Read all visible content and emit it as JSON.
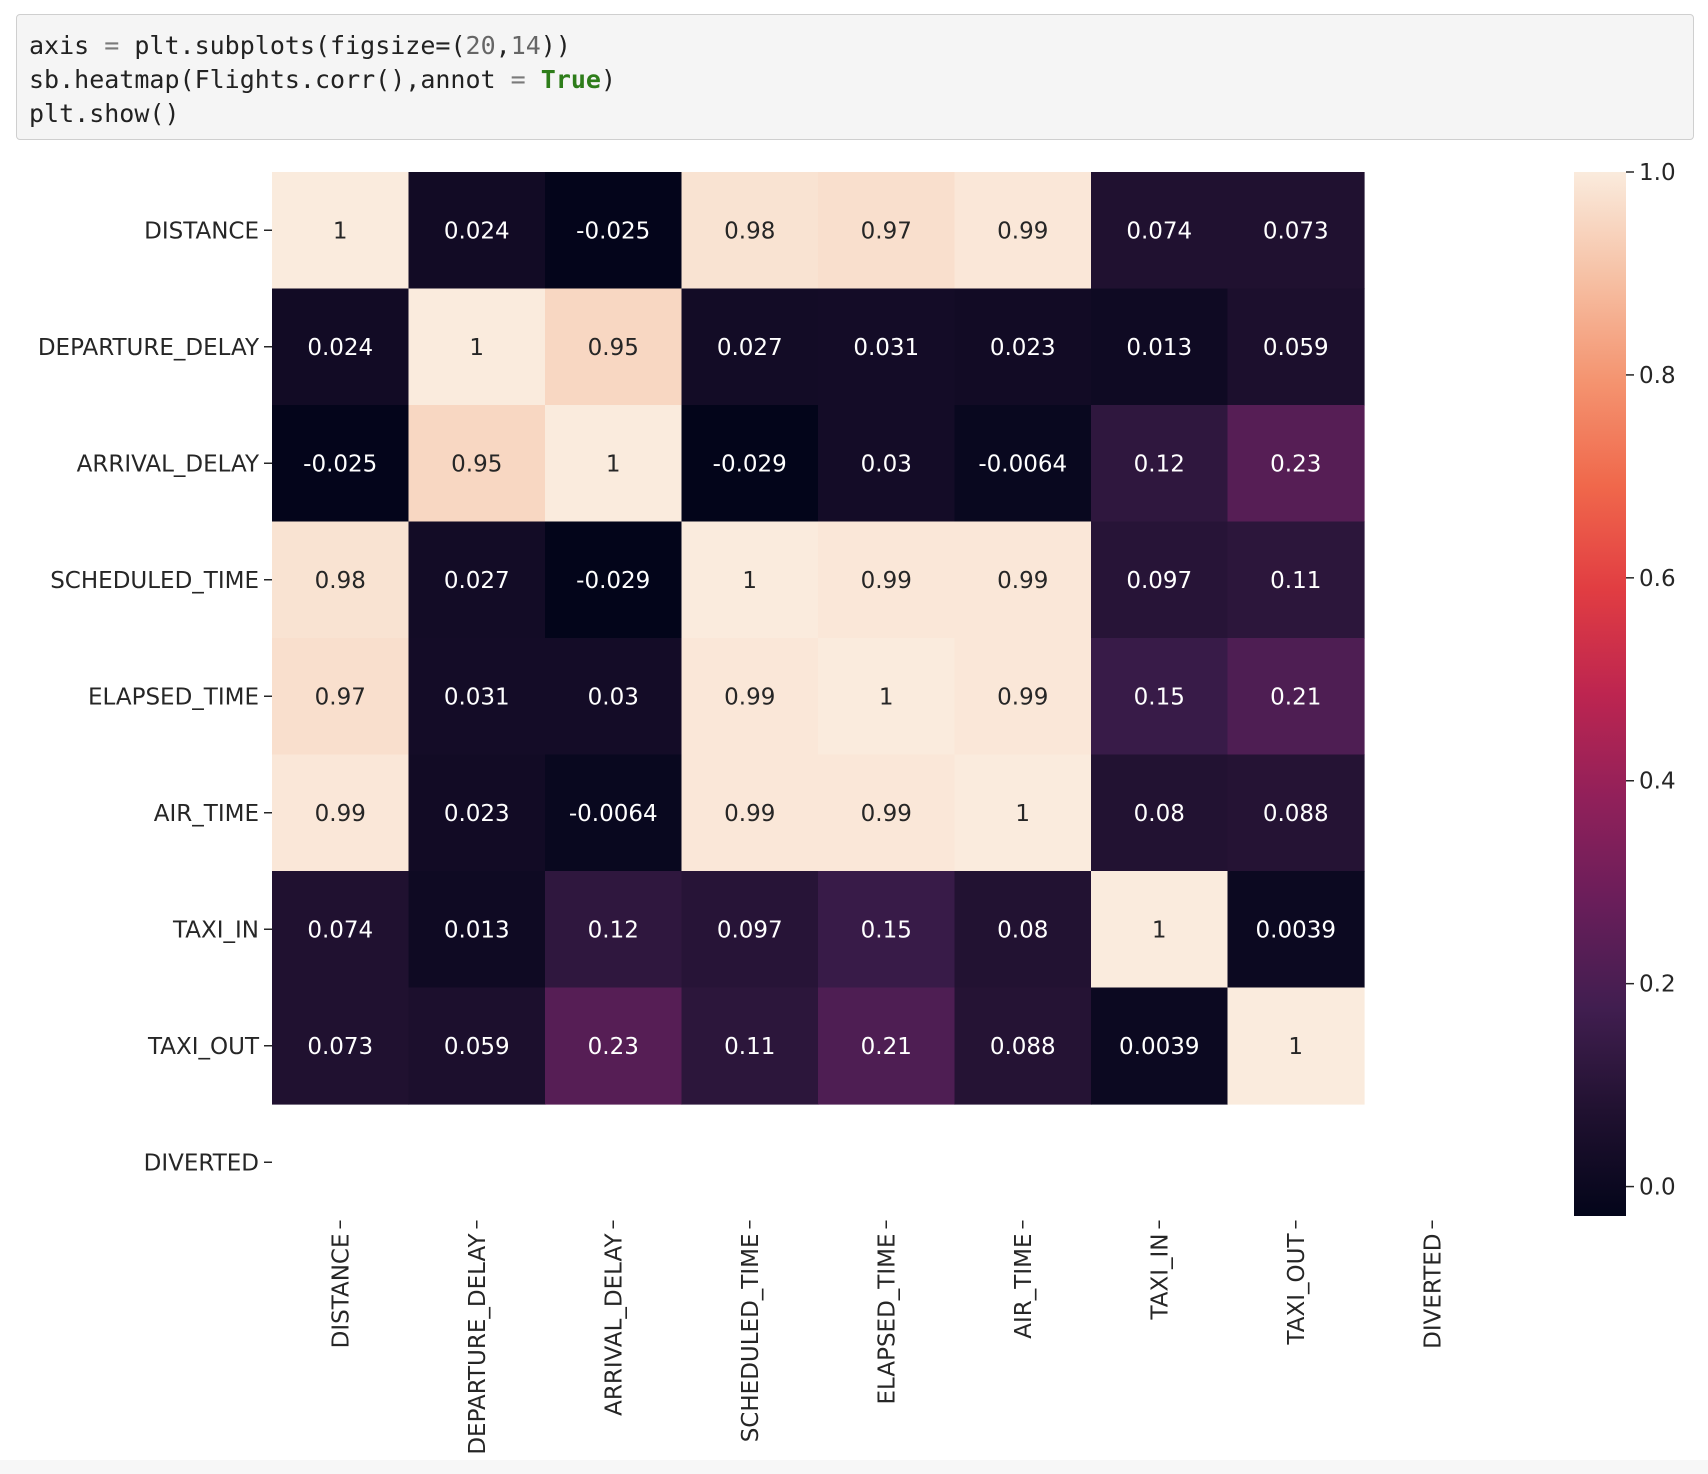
{
  "code_cell": {
    "lines": [
      "axis = plt.subplots(figsize=(20,14))",
      "sb.heatmap(Flights.corr(),annot = True)",
      "plt.show()"
    ]
  },
  "chart_data": {
    "type": "heatmap",
    "title": "",
    "xlabel": "",
    "ylabel": "",
    "row_labels": [
      "DISTANCE",
      "DEPARTURE_DELAY",
      "ARRIVAL_DELAY",
      "SCHEDULED_TIME",
      "ELAPSED_TIME",
      "AIR_TIME",
      "TAXI_IN",
      "TAXI_OUT",
      "DIVERTED"
    ],
    "col_labels": [
      "DISTANCE",
      "DEPARTURE_DELAY",
      "ARRIVAL_DELAY",
      "SCHEDULED_TIME",
      "ELAPSED_TIME",
      "AIR_TIME",
      "TAXI_IN",
      "TAXI_OUT",
      "DIVERTED"
    ],
    "values": [
      [
        1,
        0.024,
        -0.025,
        0.98,
        0.97,
        0.99,
        0.074,
        0.073,
        null
      ],
      [
        0.024,
        1,
        0.95,
        0.027,
        0.031,
        0.023,
        0.013,
        0.059,
        null
      ],
      [
        -0.025,
        0.95,
        1,
        -0.029,
        0.03,
        -0.0064,
        0.12,
        0.23,
        null
      ],
      [
        0.98,
        0.027,
        -0.029,
        1,
        0.99,
        0.99,
        0.097,
        0.11,
        null
      ],
      [
        0.97,
        0.031,
        0.03,
        0.99,
        1,
        0.99,
        0.15,
        0.21,
        null
      ],
      [
        0.99,
        0.023,
        -0.0064,
        0.99,
        0.99,
        1,
        0.08,
        0.088,
        null
      ],
      [
        0.074,
        0.013,
        0.12,
        0.097,
        0.15,
        0.08,
        1,
        0.0039,
        null
      ],
      [
        0.073,
        0.059,
        0.23,
        0.11,
        0.21,
        0.088,
        0.0039,
        1,
        null
      ],
      [
        null,
        null,
        null,
        null,
        null,
        null,
        null,
        null,
        null
      ]
    ],
    "annot": true,
    "colormap": "rocket",
    "vmin": -0.029,
    "vmax": 1.0,
    "colorbar": {
      "ticks": [
        0.0,
        0.2,
        0.4,
        0.6,
        0.8,
        1.0
      ],
      "tick_labels": [
        "0.0",
        "0.2",
        "0.4",
        "0.6",
        "0.8",
        "1.0"
      ]
    },
    "x_tick_rotation": "vertical",
    "grid": false
  }
}
